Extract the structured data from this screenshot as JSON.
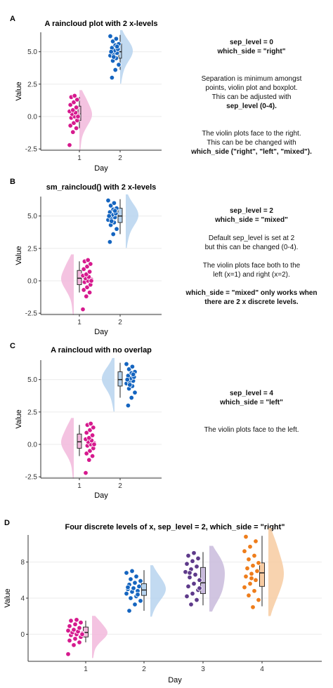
{
  "colors": {
    "pink": "#d61a8e",
    "pink_light": "#f2b9dc",
    "blue": "#1565c0",
    "blue_light": "#b7d3ee",
    "purple": "#5e3a8a",
    "purple_light": "#c9bbdc",
    "orange": "#ee7d1b",
    "orange_light": "#f7cba1",
    "grid": "#ebebeb"
  },
  "chart_data": [
    {
      "type": "raincloud",
      "panel_tag": "A",
      "title": "A raincloud plot with 2 x-levels",
      "xlabel": "Day",
      "ylabel": "Value",
      "categories": [
        "1",
        "2"
      ],
      "y_ticks": [
        "-2.5",
        "0.0",
        "2.5",
        "5.0"
      ],
      "ylim": [
        -2.6,
        6.5
      ],
      "sep_level": 0,
      "which_side": "right",
      "series": [
        {
          "x": "1",
          "color": "pink",
          "points": [
            -2.2,
            -1.2,
            -0.9,
            -0.7,
            -0.5,
            -0.3,
            -0.1,
            0.0,
            0.1,
            0.2,
            0.3,
            0.4,
            0.5,
            0.7,
            0.9,
            1.1,
            1.3,
            1.5,
            1.6,
            0.0
          ],
          "box": [
            -0.9,
            -0.3,
            0.2,
            0.8,
            1.5
          ]
        },
        {
          "x": "2",
          "color": "blue",
          "points": [
            3.0,
            3.6,
            4.0,
            4.3,
            4.5,
            4.7,
            4.8,
            4.9,
            5.0,
            5.1,
            5.2,
            5.3,
            5.5,
            5.6,
            5.8,
            6.0,
            6.2,
            4.6,
            5.4,
            5.0
          ],
          "box": [
            3.6,
            4.5,
            5.0,
            5.6,
            6.3
          ]
        }
      ]
    },
    {
      "type": "raincloud",
      "panel_tag": "B",
      "title": "sm_raincloud() with 2 x-levels",
      "xlabel": "Day",
      "ylabel": "Value",
      "categories": [
        "1",
        "2"
      ],
      "y_ticks": [
        "-2.5",
        "0.0",
        "2.5",
        "5.0"
      ],
      "ylim": [
        -2.6,
        6.5
      ],
      "sep_level": 2,
      "which_side": "mixed",
      "series": [
        {
          "x": "1",
          "color": "pink",
          "points": [
            -2.2,
            -1.2,
            -0.9,
            -0.7,
            -0.5,
            -0.3,
            -0.1,
            0.0,
            0.1,
            0.2,
            0.3,
            0.4,
            0.5,
            0.7,
            0.9,
            1.1,
            1.3,
            1.5,
            1.6,
            0.0
          ],
          "box": [
            -0.9,
            -0.3,
            0.2,
            0.8,
            1.5
          ]
        },
        {
          "x": "2",
          "color": "blue",
          "points": [
            3.0,
            3.6,
            4.0,
            4.3,
            4.5,
            4.7,
            4.8,
            4.9,
            5.0,
            5.1,
            5.2,
            5.3,
            5.5,
            5.6,
            5.8,
            6.0,
            6.2,
            4.6,
            5.4,
            5.0
          ],
          "box": [
            3.6,
            4.5,
            5.0,
            5.6,
            6.3
          ]
        }
      ]
    },
    {
      "type": "raincloud",
      "panel_tag": "C",
      "title": "A raincloud with no overlap",
      "xlabel": "Day",
      "ylabel": "Value",
      "categories": [
        "1",
        "2"
      ],
      "y_ticks": [
        "-2.5",
        "0.0",
        "2.5",
        "5.0"
      ],
      "ylim": [
        -2.6,
        6.5
      ],
      "sep_level": 4,
      "which_side": "left",
      "series": [
        {
          "x": "1",
          "color": "pink",
          "points": [
            -2.2,
            -1.2,
            -0.9,
            -0.7,
            -0.5,
            -0.3,
            -0.1,
            0.0,
            0.1,
            0.2,
            0.3,
            0.4,
            0.5,
            0.7,
            0.9,
            1.1,
            1.3,
            1.5,
            1.6,
            0.0
          ],
          "box": [
            -0.9,
            -0.3,
            0.2,
            0.8,
            1.5
          ]
        },
        {
          "x": "2",
          "color": "blue",
          "points": [
            3.0,
            3.6,
            4.0,
            4.3,
            4.5,
            4.7,
            4.8,
            4.9,
            5.0,
            5.1,
            5.2,
            5.3,
            5.5,
            5.6,
            5.8,
            6.0,
            6.2,
            4.6,
            5.4,
            5.0
          ],
          "box": [
            3.6,
            4.5,
            5.0,
            5.6,
            6.3
          ]
        }
      ]
    },
    {
      "type": "raincloud",
      "panel_tag": "D",
      "title": "Four discrete levels of x, sep_level = 2, which_side = \"right\"",
      "xlabel": "Day",
      "ylabel": "Value",
      "categories": [
        "1",
        "2",
        "3",
        "4"
      ],
      "y_ticks": [
        "0",
        "4",
        "8"
      ],
      "ylim": [
        -3,
        11
      ],
      "sep_level": 2,
      "which_side": "right",
      "series": [
        {
          "x": "1",
          "color": "pink",
          "points": [
            -2.2,
            -1.2,
            -0.9,
            -0.7,
            -0.5,
            -0.3,
            -0.1,
            0.0,
            0.1,
            0.2,
            0.3,
            0.4,
            0.5,
            0.7,
            0.9,
            1.1,
            1.3,
            1.5,
            1.6,
            0.0
          ],
          "box": [
            -0.9,
            -0.3,
            0.2,
            0.8,
            1.5
          ]
        },
        {
          "x": "2",
          "color": "blue",
          "points": [
            2.6,
            3.3,
            3.7,
            4.0,
            4.2,
            4.5,
            4.7,
            4.8,
            5.0,
            5.1,
            5.3,
            5.5,
            5.7,
            5.9,
            6.1,
            6.4,
            6.8,
            7.0,
            4.4,
            5.2
          ],
          "box": [
            2.6,
            4.3,
            4.9,
            5.6,
            7.1
          ]
        },
        {
          "x": "3",
          "color": "purple",
          "points": [
            3.3,
            3.8,
            4.2,
            4.5,
            4.9,
            5.3,
            5.6,
            6.0,
            6.3,
            6.6,
            6.9,
            7.2,
            7.5,
            7.8,
            8.1,
            8.4,
            8.7,
            9.0,
            5.1,
            6.8
          ],
          "box": [
            3.2,
            4.5,
            5.7,
            7.4,
            9.1
          ]
        },
        {
          "x": "4",
          "color": "orange",
          "points": [
            3.0,
            3.8,
            4.3,
            4.8,
            5.2,
            5.6,
            6.0,
            6.4,
            6.7,
            7.0,
            7.3,
            7.6,
            7.9,
            8.3,
            8.7,
            9.2,
            9.7,
            10.3,
            10.8,
            6.2
          ],
          "box": [
            3.1,
            5.3,
            6.8,
            7.9,
            10.9
          ]
        }
      ]
    }
  ],
  "notes": {
    "a": {
      "line1": "sep_level = 0",
      "line2": "which_side = \"right\"",
      "line3": "Separation is minimum amongst",
      "line4": "points, violin plot and boxplot.",
      "line5": "This can be adjusted with",
      "line6": "sep_level (0-4).",
      "line7": "The violin plots face to the right.",
      "line8": "This can be be changed with",
      "line9": "which_side (\"right\", \"left\", \"mixed\")."
    },
    "b": {
      "line1": "sep_level = 2",
      "line2": "which_side = \"mixed\"",
      "line3": "Default sep_level is set at 2",
      "line4": "but this can be changed (0-4).",
      "line5": "The violin plots face both to the",
      "line6": "left (x=1) and right (x=2).",
      "line7": "which_side = \"mixed\" only works when",
      "line8": "there are 2 x discrete levels."
    },
    "c": {
      "line1": "sep_level = 4",
      "line2": "which_side = \"left\"",
      "line3": "The violin plots face to the left."
    }
  }
}
